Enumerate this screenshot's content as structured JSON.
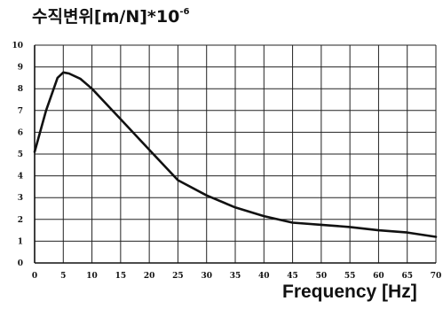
{
  "chart_data": {
    "type": "line",
    "title": "",
    "ylabel_main": "수직변위[m/N]*10",
    "ylabel_exponent": "-6",
    "xlabel": "Frequency [Hz]",
    "xlim": [
      0,
      70
    ],
    "ylim": [
      0,
      10
    ],
    "x_ticks": [
      "0",
      "5",
      "10",
      "15",
      "20",
      "25",
      "30",
      "35",
      "40",
      "45",
      "50",
      "55",
      "60",
      "65",
      "70"
    ],
    "y_ticks": [
      "0",
      "1",
      "2",
      "3",
      "4",
      "5",
      "6",
      "7",
      "8",
      "9",
      "10"
    ],
    "grid": true,
    "series": [
      {
        "x": [
          0,
          2,
          4,
          5,
          6,
          8,
          10,
          12.5,
          15,
          20,
          25,
          30,
          35,
          40,
          45,
          50,
          55,
          60,
          65,
          70
        ],
        "y": [
          5.1,
          7.0,
          8.5,
          8.75,
          8.7,
          8.45,
          8.0,
          7.3,
          6.6,
          5.2,
          3.8,
          3.1,
          2.55,
          2.15,
          1.85,
          1.75,
          1.65,
          1.5,
          1.4,
          1.2
        ]
      }
    ]
  }
}
